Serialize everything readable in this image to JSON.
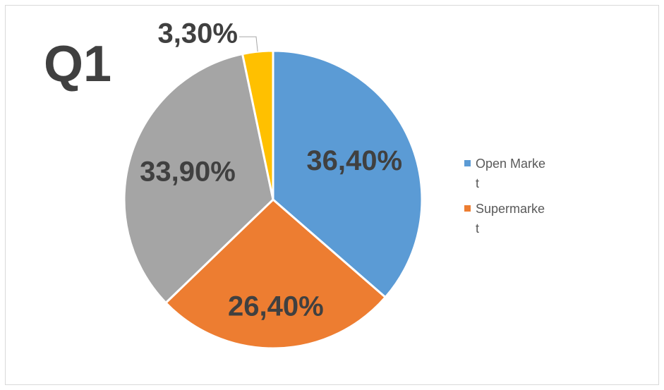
{
  "chart_data": {
    "type": "pie",
    "title": "Q1",
    "categories": [
      "Open Market",
      "Supermarket",
      null,
      null
    ],
    "values": [
      36.4,
      26.4,
      33.9,
      3.3
    ],
    "value_labels": [
      "36,40%",
      "26,40%",
      "33,90%",
      "3,30%"
    ],
    "colors": [
      "#5b9bd5",
      "#ed7d31",
      "#a5a5a5",
      "#ffc000"
    ],
    "legend": "right"
  }
}
